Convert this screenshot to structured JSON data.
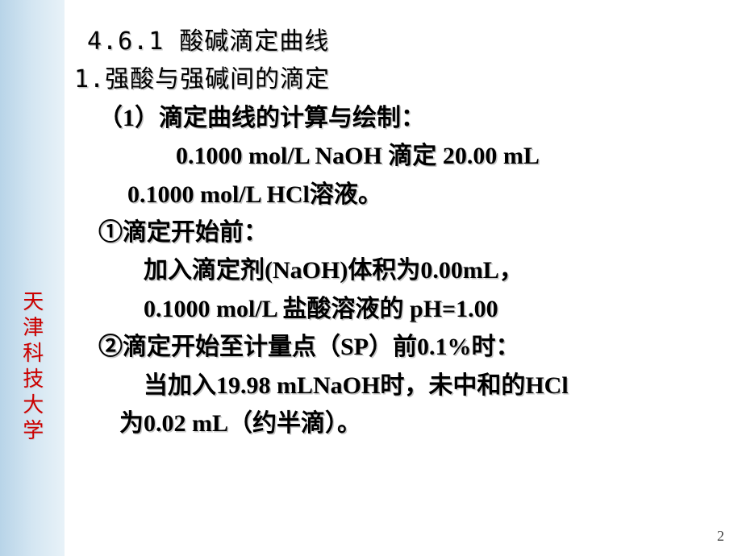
{
  "sidebar": {
    "label": "天津科技大学",
    "color": "#cc0000"
  },
  "content": {
    "l1": "4.6.1 酸碱滴定曲线",
    "l2": "1.强酸与强碱间的滴定",
    "l3": "（1）滴定曲线的计算与绘制：",
    "l4": "0.1000 mol/L NaOH  滴定  20.00 mL",
    "l5": "0.1000 mol/L HCl溶液。",
    "l6": "①滴定开始前：",
    "l7": "加入滴定剂(NaOH)体积为0.00mL，",
    "l8": "0.1000 mol/L  盐酸溶液的  pH=1.00",
    "l9": "②滴定开始至计量点（SP）前0.1%时：",
    "l10": "当加入19.98 mLNaOH时，未中和的HCl",
    "l11": "为0.02 mL（约半滴）。"
  },
  "page": {
    "number": "2"
  },
  "style": {
    "bg": "#ffffff",
    "sidebar_gradient": [
      "#b8d4e8",
      "#d4e6f2",
      "#e8f2f8"
    ],
    "text_color": "#000000",
    "shadow_color": "rgba(140,140,140,0.5)",
    "font_size_main": 30,
    "font_size_sidebar": 26
  }
}
